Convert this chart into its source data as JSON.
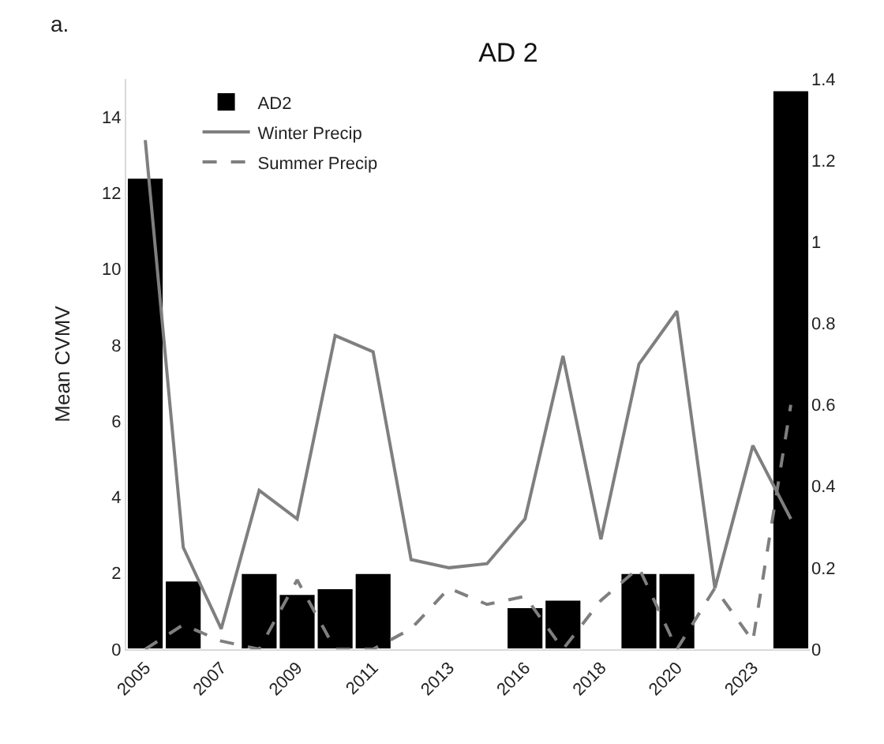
{
  "chart_data": {
    "type": "bar",
    "title": "AD 2",
    "ylabel": "Mean CVMV",
    "annotations": [
      "a."
    ],
    "categories": [
      "2005",
      null,
      "2007",
      null,
      "2009",
      null,
      "2011",
      null,
      "2013",
      null,
      "2016",
      null,
      "2018",
      null,
      "2020",
      null,
      "2023",
      null
    ],
    "series": [
      {
        "name": "AD2",
        "color": "#000000",
        "values": [
          12.4,
          1.8,
          null,
          2.0,
          1.45,
          1.6,
          2.0,
          null,
          null,
          null,
          1.1,
          1.3,
          null,
          2.0,
          2.0,
          null,
          null,
          14.7
        ]
      },
      {
        "name": "Winter Precip",
        "type": "line",
        "axis": "y2",
        "color": "#7f7f7f",
        "line_style": "solid",
        "values": [
          1.25,
          0.25,
          0.05,
          0.39,
          0.32,
          0.77,
          0.73,
          0.22,
          0.2,
          0.21,
          0.32,
          0.72,
          0.27,
          0.7,
          0.83,
          0.15,
          0.5,
          0.32
        ]
      },
      {
        "name": "Summer Precip",
        "type": "line",
        "axis": "y2",
        "color": "#7f7f7f",
        "line_style": "dashed",
        "values": [
          0,
          0.06,
          0.02,
          0,
          0.17,
          0,
          0,
          0.05,
          0.15,
          0.11,
          0.13,
          0,
          0.12,
          0.2,
          0,
          0.15,
          0.02,
          0.6
        ]
      }
    ],
    "ylim": [
      0,
      15
    ],
    "yticks": [
      0,
      2,
      4,
      6,
      8,
      10,
      12,
      14
    ],
    "y2lim": [
      0,
      1.4
    ],
    "y2ticks": [
      0,
      0.2,
      0.4,
      0.6,
      0.8,
      1,
      1.2,
      1.4
    ],
    "grid": false,
    "legend": "top left",
    "marker": "none"
  }
}
